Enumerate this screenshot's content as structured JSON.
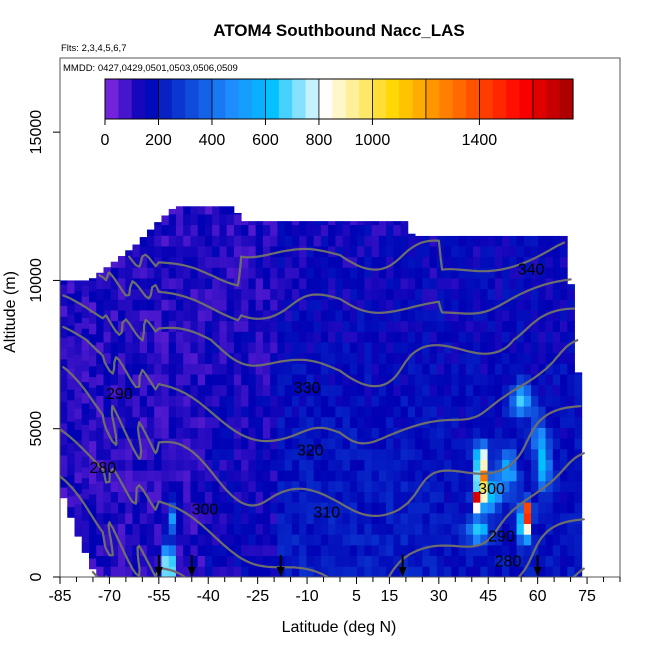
{
  "chart_data": {
    "type": "heatmap",
    "title": "ATOM4 Southbound Nacc_LAS",
    "annotations": [
      "Flts: 2,3,4,5,6,7",
      "MMDD: 0427,0429,0501,0503,0506,0509"
    ],
    "xlabel": "Latitude (deg N)",
    "ylabel": "Altitude (m)",
    "xlim": [
      -85,
      85
    ],
    "ylim": [
      0,
      17500
    ],
    "xticks": [
      -85,
      -70,
      -55,
      -40,
      -25,
      -10,
      5,
      15,
      30,
      45,
      60,
      75
    ],
    "yticks": [
      0,
      5000,
      10000,
      15000
    ],
    "colorbar": {
      "range": [
        0,
        1750
      ],
      "ticks": [
        0,
        200,
        400,
        600,
        800,
        1000,
        1400
      ],
      "colors": [
        "#8a2be2",
        "#0000b4",
        "#1e90ff",
        "#00bfff",
        "#ffffff",
        "#ffd700",
        "#ff0000",
        "#a00000"
      ]
    },
    "contour_labels": [
      {
        "text": "340",
        "lat": 58,
        "alt": 10200
      },
      {
        "text": "330",
        "lat": -10,
        "alt": 6200
      },
      {
        "text": "320",
        "lat": -9,
        "alt": 4100
      },
      {
        "text": "310",
        "lat": -4,
        "alt": 2000
      },
      {
        "text": "300",
        "lat": -41,
        "alt": 2100
      },
      {
        "text": "300",
        "lat": 46,
        "alt": 2800
      },
      {
        "text": "290",
        "lat": -67,
        "alt": 6000
      },
      {
        "text": "290",
        "lat": 49,
        "alt": 1200
      },
      {
        "text": "280",
        "lat": -72,
        "alt": 3500
      },
      {
        "text": "280",
        "lat": 51,
        "alt": 350
      }
    ],
    "arrows_lat": [
      -55,
      -45,
      -18,
      19,
      60
    ]
  }
}
